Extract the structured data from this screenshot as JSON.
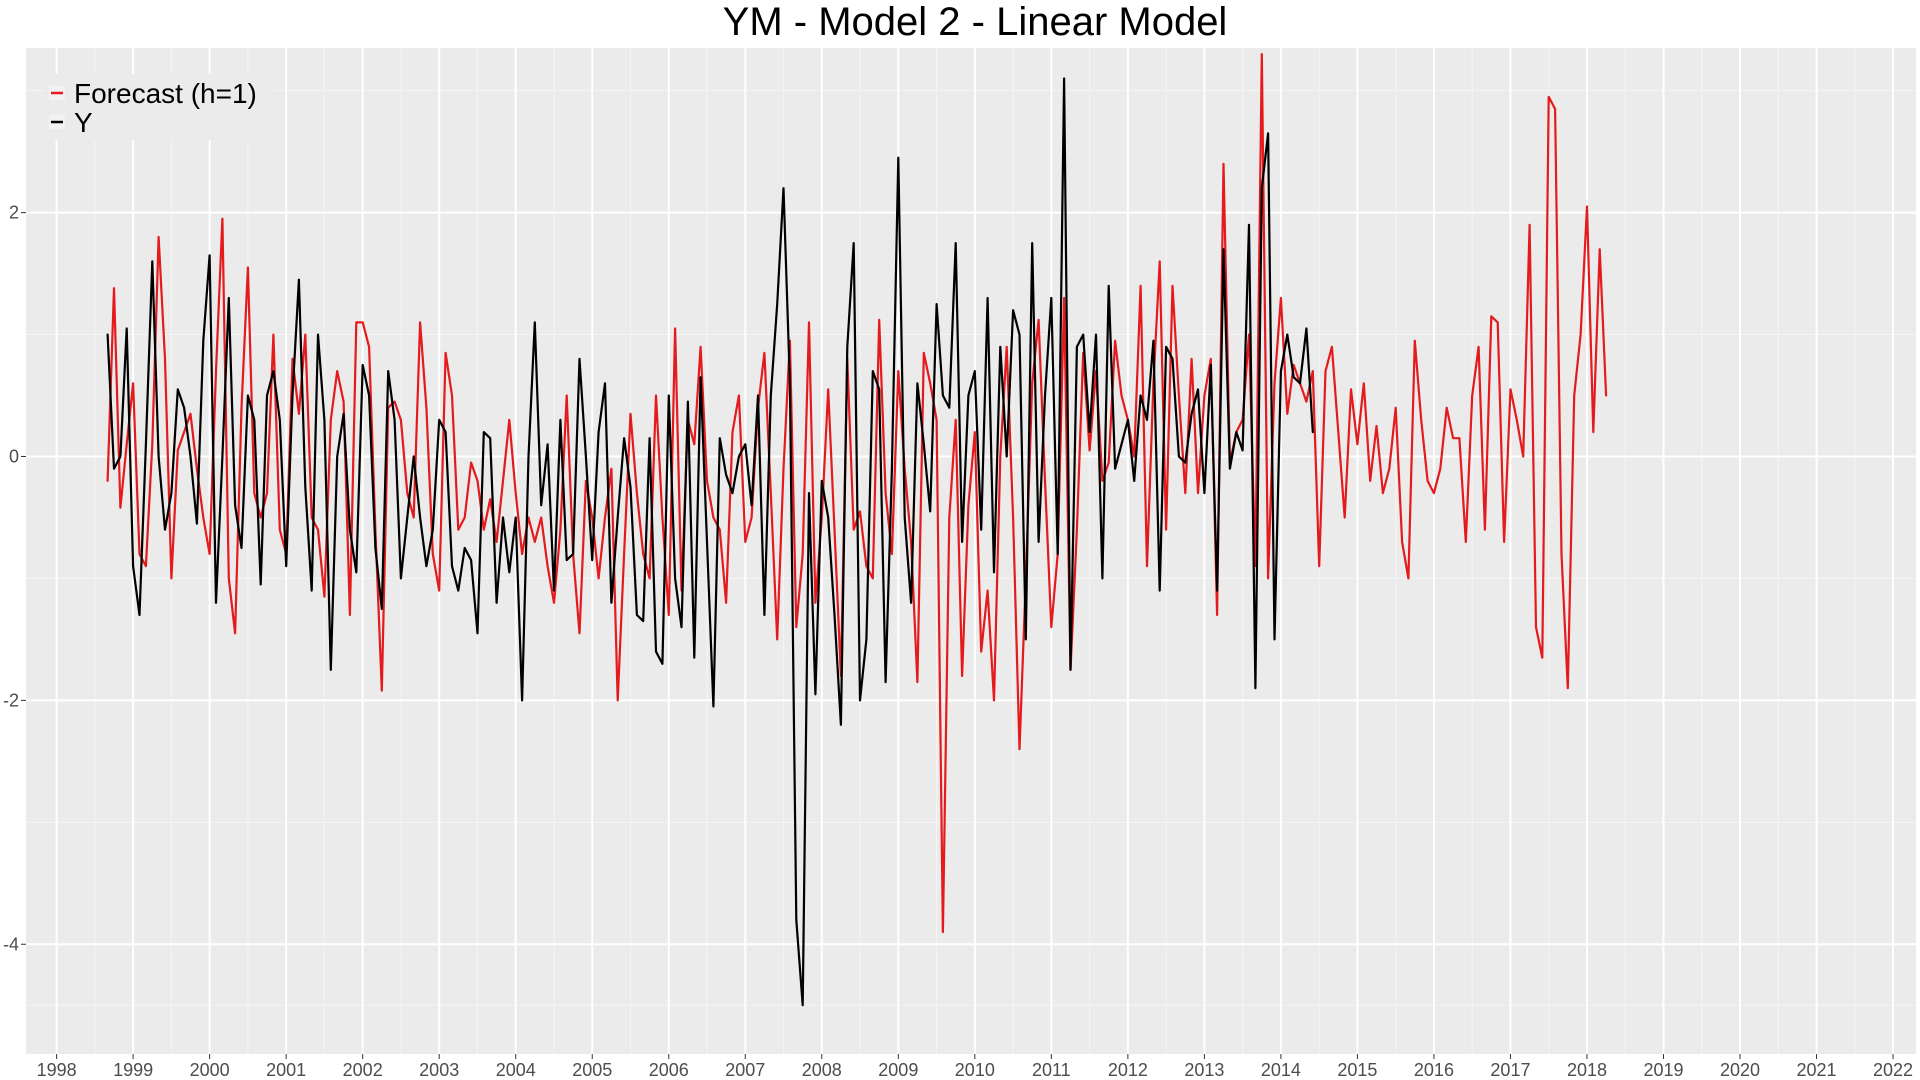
{
  "chart_data": {
    "type": "line",
    "title": "YM - Model 2 - Linear Model",
    "xlabel": "",
    "ylabel": "",
    "x_axis": {
      "unit": "year",
      "ticks": [
        1998,
        1999,
        2000,
        2001,
        2002,
        2003,
        2004,
        2005,
        2006,
        2007,
        2008,
        2009,
        2010,
        2011,
        2012,
        2013,
        2014,
        2015,
        2016,
        2017,
        2018,
        2019,
        2020,
        2021,
        2022
      ],
      "tick_labels": [
        "1998",
        "1999",
        "2000",
        "2001",
        "2002",
        "2003",
        "2004",
        "2005",
        "2006",
        "2007",
        "2008",
        "2009",
        "2010",
        "2011",
        "2012",
        "2013",
        "2014",
        "2015",
        "2016",
        "2017",
        "2018",
        "2019",
        "2020",
        "2021",
        "2022"
      ],
      "range": [
        1997.6,
        2022.3
      ]
    },
    "y_axis": {
      "ticks": [
        -4,
        -2,
        0,
        2
      ],
      "tick_labels": [
        "-4",
        "-2",
        "0",
        "2"
      ],
      "range": [
        -4.9,
        3.35
      ]
    },
    "grid": true,
    "legend": {
      "position": "top-left",
      "entries": [
        {
          "label": "Forecast (h=1)",
          "color": "#e41a1c"
        },
        {
          "label": "Y",
          "color": "#000000"
        }
      ]
    },
    "x_start": "1998-09",
    "x_step": "1 month",
    "series": [
      {
        "name": "Forecast (h=1)",
        "color": "#e41a1c",
        "values": [
          -0.2,
          1.38,
          -0.42,
          0.1,
          0.6,
          -0.8,
          -0.9,
          0.1,
          1.8,
          0.8,
          -1.0,
          0.05,
          0.2,
          0.35,
          -0.1,
          -0.5,
          -0.8,
          0.7,
          1.95,
          -1.0,
          -1.45,
          0.4,
          1.55,
          -0.3,
          -0.5,
          -0.3,
          1.0,
          -0.6,
          -0.8,
          0.8,
          0.35,
          1.0,
          -0.5,
          -0.6,
          -1.15,
          0.3,
          0.7,
          0.45,
          -1.3,
          1.1,
          1.1,
          0.9,
          -0.6,
          -1.92,
          0.4,
          0.45,
          0.3,
          -0.3,
          -0.5,
          1.1,
          0.4,
          -0.8,
          -1.1,
          0.85,
          0.5,
          -0.6,
          -0.5,
          -0.05,
          -0.2,
          -0.6,
          -0.35,
          -0.7,
          -0.2,
          0.3,
          -0.3,
          -0.8,
          -0.5,
          -0.7,
          -0.5,
          -0.9,
          -1.2,
          -0.6,
          0.5,
          -0.8,
          -1.45,
          -0.2,
          -0.5,
          -1.0,
          -0.5,
          -0.1,
          -2.0,
          -0.8,
          0.35,
          -0.3,
          -0.8,
          -1.0,
          0.5,
          -0.5,
          -1.3,
          1.05,
          -1.1,
          0.3,
          0.1,
          0.9,
          -0.2,
          -0.5,
          -0.6,
          -1.2,
          0.2,
          0.5,
          -0.7,
          -0.5,
          0.4,
          0.85,
          -0.3,
          -1.5,
          -0.1,
          0.95,
          -1.4,
          -0.8,
          1.1,
          -1.2,
          -0.5,
          0.55,
          -0.6,
          -1.8,
          0.8,
          -0.6,
          -0.45,
          -0.9,
          -1.0,
          1.12,
          -0.3,
          -0.8,
          0.7,
          -0.1,
          -0.7,
          -1.85,
          0.85,
          0.6,
          0.3,
          -3.9,
          -0.5,
          0.3,
          -1.8,
          -0.4,
          0.2,
          -1.6,
          -1.1,
          -2.0,
          0.0,
          0.9,
          -0.5,
          -2.4,
          -1.0,
          0.6,
          1.12,
          -0.2,
          -1.4,
          -0.8,
          1.3,
          -1.75,
          -0.6,
          0.85,
          0.05,
          0.7,
          -0.2,
          -0.05,
          0.95,
          0.5,
          0.3,
          0.0,
          1.4,
          -0.9,
          0.6,
          1.6,
          -0.6,
          1.4,
          0.5,
          -0.3,
          0.8,
          -0.3,
          0.5,
          0.8,
          -1.3,
          2.4,
          -0.05,
          0.2,
          0.3,
          1.0,
          -0.9,
          3.3,
          -1.0,
          0.6,
          1.3,
          0.35,
          0.75,
          0.6,
          0.45,
          0.7,
          -0.9,
          0.7,
          0.9,
          0.2,
          -0.5,
          0.55,
          0.1,
          0.6,
          -0.2,
          0.25,
          -0.3,
          -0.1,
          0.4,
          -0.7,
          -1.0,
          0.95,
          0.3,
          -0.2,
          -0.3,
          -0.1,
          0.4,
          0.15,
          0.15,
          -0.7,
          0.5,
          0.9,
          -0.6,
          1.15,
          1.1,
          -0.7,
          0.55,
          0.3,
          0.0,
          1.9,
          -1.4,
          -1.65,
          2.95,
          2.85,
          -0.8,
          -1.9,
          0.5,
          1.0,
          2.05,
          0.2,
          1.7,
          0.5
        ]
      },
      {
        "name": "Y",
        "color": "#000000",
        "values": [
          1.0,
          -0.1,
          0.0,
          1.05,
          -0.9,
          -1.3,
          0.1,
          1.6,
          0.0,
          -0.6,
          -0.3,
          0.55,
          0.4,
          0.0,
          -0.55,
          0.95,
          1.65,
          -1.2,
          0.0,
          1.3,
          -0.4,
          -0.75,
          0.5,
          0.3,
          -1.05,
          0.5,
          0.7,
          0.3,
          -0.9,
          0.5,
          1.45,
          -0.25,
          -1.1,
          1.0,
          0.3,
          -1.75,
          0.0,
          0.35,
          -0.6,
          -0.95,
          0.75,
          0.5,
          -0.75,
          -1.25,
          0.7,
          0.3,
          -1.0,
          -0.5,
          0.0,
          -0.5,
          -0.9,
          -0.6,
          0.3,
          0.2,
          -0.9,
          -1.1,
          -0.75,
          -0.85,
          -1.45,
          0.2,
          0.15,
          -1.2,
          -0.5,
          -0.95,
          -0.5,
          -2.0,
          0.0,
          1.1,
          -0.4,
          0.1,
          -1.1,
          0.3,
          -0.85,
          -0.8,
          0.8,
          0.0,
          -0.85,
          0.2,
          0.6,
          -1.2,
          -0.5,
          0.15,
          -0.25,
          -1.3,
          -1.35,
          0.15,
          -1.6,
          -1.7,
          0.5,
          -1.0,
          -1.4,
          0.45,
          -1.65,
          0.65,
          -0.7,
          -2.05,
          0.15,
          -0.15,
          -0.3,
          0.0,
          0.1,
          -0.4,
          0.5,
          -1.3,
          0.5,
          1.25,
          2.2,
          0.6,
          -3.8,
          -4.5,
          -0.3,
          -1.95,
          -0.2,
          -0.5,
          -1.3,
          -2.2,
          0.9,
          1.75,
          -2.0,
          -1.5,
          0.7,
          0.55,
          -1.85,
          -0.1,
          2.45,
          -0.5,
          -1.2,
          0.6,
          0.1,
          -0.45,
          1.25,
          0.5,
          0.4,
          1.75,
          -0.7,
          0.5,
          0.7,
          -0.6,
          1.3,
          -0.95,
          0.9,
          0.0,
          1.2,
          1.0,
          -1.5,
          1.75,
          -0.7,
          0.5,
          1.3,
          -0.8,
          3.1,
          -1.75,
          0.9,
          1.0,
          0.2,
          1.0,
          -1.0,
          1.4,
          -0.1,
          0.1,
          0.3,
          -0.2,
          0.5,
          0.3,
          0.95,
          -1.1,
          0.9,
          0.8,
          0.0,
          -0.05,
          0.35,
          0.55,
          -0.3,
          0.75,
          -1.1,
          1.7,
          -0.1,
          0.2,
          0.05,
          1.9,
          -1.9,
          2.2,
          2.65,
          -1.5,
          0.7,
          1.0,
          0.65,
          0.6,
          1.05,
          0.2
        ]
      }
    ]
  }
}
